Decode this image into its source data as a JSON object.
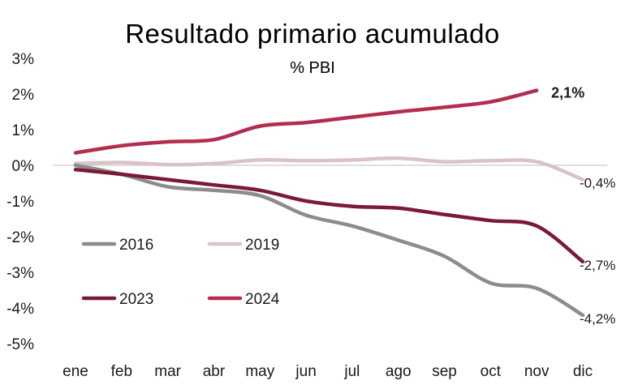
{
  "chart_data": {
    "type": "line",
    "title": "Resultado primario acumulado",
    "subtitle": "% PBI",
    "xlabel": "",
    "ylabel": "",
    "categories": [
      "ene",
      "feb",
      "mar",
      "abr",
      "may",
      "jun",
      "jul",
      "ago",
      "sep",
      "oct",
      "nov",
      "dic"
    ],
    "ylim": [
      -5,
      3
    ],
    "yticks": [
      3,
      2,
      1,
      0,
      -1,
      -2,
      -3,
      -4,
      -5
    ],
    "ytick_labels": [
      "3%",
      "2%",
      "1%",
      "0%",
      "-1%",
      "-2%",
      "-3%",
      "-4%",
      "-5%"
    ],
    "grid": false,
    "legend_position": "center-left",
    "series": [
      {
        "name": "2016",
        "color": "#8c8c8c",
        "values": [
          0.0,
          -0.25,
          -0.6,
          -0.7,
          -0.85,
          -1.4,
          -1.7,
          -2.1,
          -2.55,
          -3.3,
          -3.45,
          -4.2
        ],
        "end_label": "-4,2%"
      },
      {
        "name": "2019",
        "color": "#d9c3c9",
        "values": [
          0.05,
          0.08,
          0.02,
          0.05,
          0.15,
          0.13,
          0.15,
          0.2,
          0.1,
          0.13,
          0.1,
          -0.4
        ],
        "end_label": "-0,4%"
      },
      {
        "name": "2023",
        "color": "#7a1a36",
        "values": [
          -0.12,
          -0.25,
          -0.4,
          -0.55,
          -0.7,
          -1.0,
          -1.15,
          -1.2,
          -1.38,
          -1.55,
          -1.7,
          -2.7
        ],
        "end_label": "-2,7%"
      },
      {
        "name": "2024",
        "color": "#b32d50",
        "values": [
          0.35,
          0.55,
          0.66,
          0.72,
          1.1,
          1.2,
          1.35,
          1.5,
          1.63,
          1.78,
          2.1,
          null
        ],
        "end_label": "2,1%"
      }
    ]
  }
}
